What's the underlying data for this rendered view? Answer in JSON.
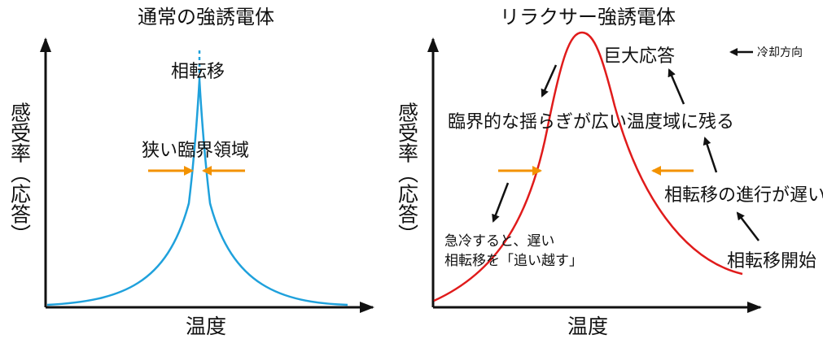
{
  "left_panel": {
    "title": "通常の強誘電体",
    "ylabel": "感受率（応答）",
    "xlabel": "温度",
    "peak_label": "相転移",
    "width_label": "狭い臨界領域"
  },
  "right_panel": {
    "title": "リラクサー強誘電体",
    "ylabel": "感受率（応答）",
    "xlabel": "温度",
    "peak_label": "巨大応答",
    "legend_label": "冷却方向",
    "wide_label": "臨界的な揺らぎが広い温度域に残る",
    "slow_label": "相転移の進行が遅い",
    "start_label": "相転移開始",
    "quench_line1": "急冷すると、遅い",
    "quench_line2": "相転移を「追い越す」"
  },
  "colors": {
    "normal_curve": "#1fa1dc",
    "relaxor_curve": "#e01b1b",
    "width_arrows": "#f39200",
    "axes": "#111111"
  }
}
